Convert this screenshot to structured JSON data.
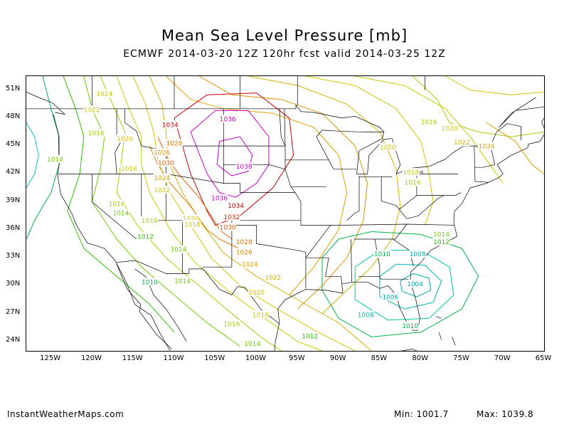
{
  "title": "Mean Sea Level Pressure [mb]",
  "subtitle": "ECMWF 2014-03-20 12Z 120hr fcst valid 2014-03-25 12Z",
  "lat_labels": [
    "51N",
    "48N",
    "45N",
    "42N",
    "39N",
    "36N",
    "33N",
    "30N",
    "27N",
    "24N"
  ],
  "lon_labels": [
    "125W",
    "120W",
    "115W",
    "110W",
    "105W",
    "100W",
    "95W",
    "90W",
    "85W",
    "80W",
    "75W",
    "70W",
    "65W"
  ],
  "footer": {
    "site": "InstantWeatherMaps.com",
    "min_label": "Min: 1001.7",
    "max_label": "Max: 1039.8"
  },
  "contour_labels": [
    {
      "text": "1024",
      "lon": -118.5,
      "lat": 50.5,
      "color": "#d4c400"
    },
    {
      "text": "1022",
      "lon": -120,
      "lat": 48.8,
      "color": "#d4c400"
    },
    {
      "text": "1016",
      "lon": -119.5,
      "lat": 46.3,
      "color": "#a8cc00"
    },
    {
      "text": "1020",
      "lon": -116,
      "lat": 45.7,
      "color": "#d4c400"
    },
    {
      "text": "1014",
      "lon": -124.5,
      "lat": 43.5,
      "color": "#6ccc00"
    },
    {
      "text": "1034",
      "lon": -110.5,
      "lat": 47.2,
      "color": "#cc0000"
    },
    {
      "text": "1028",
      "lon": -110,
      "lat": 45.2,
      "color": "#e07800"
    },
    {
      "text": "1026",
      "lon": -111.5,
      "lat": 44.2,
      "color": "#e09000"
    },
    {
      "text": "1030",
      "lon": -111,
      "lat": 43.1,
      "color": "#e06000"
    },
    {
      "text": "1018",
      "lon": -115.5,
      "lat": 42.5,
      "color": "#c8cc00"
    },
    {
      "text": "1024",
      "lon": -111.5,
      "lat": 41.5,
      "color": "#e0a000"
    },
    {
      "text": "1022",
      "lon": -111.5,
      "lat": 40.2,
      "color": "#d4c400"
    },
    {
      "text": "1036",
      "lon": -103.5,
      "lat": 47.8,
      "color": "#cc00cc"
    },
    {
      "text": "1038",
      "lon": -101.5,
      "lat": 42.7,
      "color": "#cc00cc"
    },
    {
      "text": "1036",
      "lon": -104.5,
      "lat": 39.3,
      "color": "#cc00cc"
    },
    {
      "text": "1034",
      "lon": -102.5,
      "lat": 38.5,
      "color": "#cc0000"
    },
    {
      "text": "1032",
      "lon": -103,
      "lat": 37.3,
      "color": "#cc2000"
    },
    {
      "text": "1030",
      "lon": -103.5,
      "lat": 36.2,
      "color": "#e05000"
    },
    {
      "text": "1028",
      "lon": -101.5,
      "lat": 34.6,
      "color": "#e07000"
    },
    {
      "text": "1026",
      "lon": -101.5,
      "lat": 33.5,
      "color": "#e08800"
    },
    {
      "text": "1024",
      "lon": -100.8,
      "lat": 32.2,
      "color": "#e0a000"
    },
    {
      "text": "1022",
      "lon": -98,
      "lat": 30.8,
      "color": "#d4b000"
    },
    {
      "text": "1020",
      "lon": -100,
      "lat": 29.2,
      "color": "#d4c400"
    },
    {
      "text": "1018",
      "lon": -99.5,
      "lat": 26.8,
      "color": "#c8cc00"
    },
    {
      "text": "1016",
      "lon": -103,
      "lat": 25.8,
      "color": "#a8cc00"
    },
    {
      "text": "1014",
      "lon": -100.5,
      "lat": 23.7,
      "color": "#6ccc00"
    },
    {
      "text": "1012",
      "lon": -93.5,
      "lat": 24.5,
      "color": "#30c000"
    },
    {
      "text": "1016",
      "lon": -117,
      "lat": 38.7,
      "color": "#a8cc00"
    },
    {
      "text": "1014",
      "lon": -116.5,
      "lat": 37.7,
      "color": "#6ccc00"
    },
    {
      "text": "1016",
      "lon": -113,
      "lat": 36.9,
      "color": "#a8cc00"
    },
    {
      "text": "1012",
      "lon": -113.5,
      "lat": 35.2,
      "color": "#30c000"
    },
    {
      "text": "1014",
      "lon": -109.5,
      "lat": 33.8,
      "color": "#6ccc00"
    },
    {
      "text": "1020",
      "lon": -108,
      "lat": 37.1,
      "color": "#d4c400"
    },
    {
      "text": "1018",
      "lon": -107.8,
      "lat": 36.5,
      "color": "#c8cc00"
    },
    {
      "text": "1010",
      "lon": -113,
      "lat": 30.3,
      "color": "#00b44a"
    },
    {
      "text": "1014",
      "lon": -109,
      "lat": 30.4,
      "color": "#6ccc00"
    },
    {
      "text": "1016",
      "lon": -79,
      "lat": 47.5,
      "color": "#a8cc00"
    },
    {
      "text": "1020",
      "lon": -76.5,
      "lat": 46.8,
      "color": "#d4c400"
    },
    {
      "text": "1022",
      "lon": -75,
      "lat": 45.3,
      "color": "#d4b000"
    },
    {
      "text": "1024",
      "lon": -72,
      "lat": 44.9,
      "color": "#e0a000"
    },
    {
      "text": "1020",
      "lon": -84,
      "lat": 44.8,
      "color": "#d4c400"
    },
    {
      "text": "1018",
      "lon": -81.2,
      "lat": 42.1,
      "color": "#c8cc00"
    },
    {
      "text": "1016",
      "lon": -81,
      "lat": 41,
      "color": "#a8cc00"
    },
    {
      "text": "1014",
      "lon": -77.5,
      "lat": 35.4,
      "color": "#6ccc00"
    },
    {
      "text": "1012",
      "lon": -77.5,
      "lat": 34.6,
      "color": "#30c000"
    },
    {
      "text": "1010",
      "lon": -84.7,
      "lat": 33.3,
      "color": "#00b44a"
    },
    {
      "text": "1008",
      "lon": -80.4,
      "lat": 33.3,
      "color": "#00b4b4"
    },
    {
      "text": "1004",
      "lon": -80.7,
      "lat": 30.1,
      "color": "#00aaaa"
    },
    {
      "text": "1006",
      "lon": -83.7,
      "lat": 28.7,
      "color": "#00b4b4"
    },
    {
      "text": "1008",
      "lon": -86.7,
      "lat": 26.8,
      "color": "#00b4b4"
    },
    {
      "text": "1010",
      "lon": -81.3,
      "lat": 25.6,
      "color": "#00b44a"
    }
  ],
  "colors": {
    "coast": "#000000",
    "background": "#ffffff",
    "high_center": "#cc00cc",
    "low_center": "#00aaaa"
  }
}
